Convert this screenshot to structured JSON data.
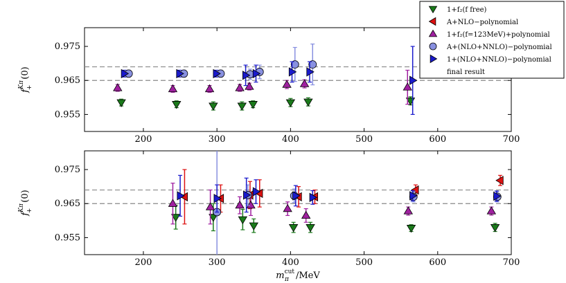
{
  "chart_data": {
    "type": "scatter",
    "title": "",
    "colors": {
      "green": "#1a7a1a",
      "red": "#dd1111",
      "magenta": "#a020a0",
      "lightblue": "#8890e0",
      "blue": "#1a1acc",
      "reference_line": "#888888"
    },
    "legend": {
      "placement": "top-right",
      "entries": [
        {
          "key": "f2_free",
          "label": "1+f₂(f free)",
          "marker": "triangle-down",
          "color": "#1a7a1a"
        },
        {
          "key": "A_nlo",
          "label": "A+NLO−polynomial",
          "marker": "triangle-left",
          "color": "#dd1111"
        },
        {
          "key": "f2_123",
          "label": "1+f₂(f=123MeV)+polynomial",
          "marker": "triangle-up",
          "color": "#a020a0"
        },
        {
          "key": "A_nlo_nnlo",
          "label": "A+(NLO+NNLO)−polynomial",
          "marker": "circle",
          "color": "#8890e0"
        },
        {
          "key": "one_nlo_nnlo",
          "label": "1+(NLO+NNLO)−polynomial",
          "marker": "triangle-right",
          "color": "#1a1acc"
        },
        {
          "key": "final",
          "label": "final result",
          "marker": "none",
          "color": "#888888"
        }
      ]
    },
    "xlabel": "m_π^cut/MeV",
    "xlim": [
      120,
      700
    ],
    "xticks": [
      200,
      300,
      400,
      500,
      600,
      700
    ],
    "panels": [
      {
        "name": "top",
        "ylabel": "f_+^{Kπ}(0)",
        "ylim": [
          0.95,
          0.9805
        ],
        "yticks": [
          0.955,
          0.965,
          0.975
        ],
        "ytick_labels": [
          "0.955",
          "0.965",
          "0.975"
        ],
        "reference_lines": [
          0.965,
          0.969
        ],
        "series": [
          {
            "key": "f2_free",
            "points": [
              {
                "x": 170,
                "y": 0.9585,
                "err": 0.001
              },
              {
                "x": 245,
                "y": 0.958,
                "err": 0.001
              },
              {
                "x": 295,
                "y": 0.9575,
                "err": 0.0012
              },
              {
                "x": 334,
                "y": 0.9575,
                "err": 0.0012
              },
              {
                "x": 349,
                "y": 0.958,
                "err": 0.001
              },
              {
                "x": 400,
                "y": 0.9585,
                "err": 0.0012
              },
              {
                "x": 424,
                "y": 0.9587,
                "err": 0.0012
              },
              {
                "x": 563,
                "y": 0.959,
                "err": 0.0012
              }
            ]
          },
          {
            "key": "f2_123",
            "points": [
              {
                "x": 165,
                "y": 0.9628,
                "err": 0.001
              },
              {
                "x": 240,
                "y": 0.9625,
                "err": 0.001
              },
              {
                "x": 290,
                "y": 0.9625,
                "err": 0.001
              },
              {
                "x": 331,
                "y": 0.9628,
                "err": 0.001
              },
              {
                "x": 344,
                "y": 0.9632,
                "err": 0.001
              },
              {
                "x": 395,
                "y": 0.9638,
                "err": 0.0012
              },
              {
                "x": 419,
                "y": 0.964,
                "err": 0.0012
              },
              {
                "x": 559,
                "y": 0.963,
                "err": 0.005
              }
            ]
          },
          {
            "key": "A_nlo_nnlo",
            "points": [
              {
                "x": 180,
                "y": 0.967,
                "err": 0.001
              },
              {
                "x": 255,
                "y": 0.967,
                "err": 0.001
              },
              {
                "x": 305,
                "y": 0.967,
                "err": 0.001
              },
              {
                "x": 345,
                "y": 0.9668,
                "err": 0.0015
              },
              {
                "x": 358,
                "y": 0.9675,
                "err": 0.002
              },
              {
                "x": 406,
                "y": 0.9697,
                "err": 0.005
              },
              {
                "x": 430,
                "y": 0.9697,
                "err": 0.006
              }
            ]
          },
          {
            "key": "one_nlo_nnlo",
            "points": [
              {
                "x": 174,
                "y": 0.967,
                "err": 0.001
              },
              {
                "x": 249,
                "y": 0.967,
                "err": 0.001
              },
              {
                "x": 299,
                "y": 0.967,
                "err": 0.001
              },
              {
                "x": 339,
                "y": 0.9665,
                "err": 0.003
              },
              {
                "x": 353,
                "y": 0.967,
                "err": 0.0025
              },
              {
                "x": 402,
                "y": 0.9675,
                "err": 0.003
              },
              {
                "x": 426,
                "y": 0.9675,
                "err": 0.003
              },
              {
                "x": 566,
                "y": 0.965,
                "err": 0.01
              }
            ]
          }
        ]
      },
      {
        "name": "bottom",
        "ylabel": "f_+^{Kπ}(0)",
        "ylim": [
          0.95,
          0.9805
        ],
        "yticks": [
          0.955,
          0.965,
          0.975
        ],
        "ytick_labels": [
          "0.955",
          "0.965",
          "0.975"
        ],
        "reference_lines": [
          0.965,
          0.969
        ],
        "series": [
          {
            "key": "f2_free",
            "points": [
              {
                "x": 244,
                "y": 0.961,
                "err": 0.0035
              },
              {
                "x": 295,
                "y": 0.961,
                "err": 0.004
              },
              {
                "x": 335,
                "y": 0.9603,
                "err": 0.003
              },
              {
                "x": 350,
                "y": 0.9585,
                "err": 0.002
              },
              {
                "x": 404,
                "y": 0.958,
                "err": 0.0015
              },
              {
                "x": 427,
                "y": 0.958,
                "err": 0.0015
              },
              {
                "x": 564,
                "y": 0.9578,
                "err": 0.001
              },
              {
                "x": 678,
                "y": 0.958,
                "err": 0.0012
              }
            ]
          },
          {
            "key": "A_nlo",
            "points": [
              {
                "x": 256,
                "y": 0.967,
                "err": 0.008
              },
              {
                "x": 305,
                "y": 0.9665,
                "err": 0.004
              },
              {
                "x": 345,
                "y": 0.9675,
                "err": 0.004
              },
              {
                "x": 358,
                "y": 0.968,
                "err": 0.004
              },
              {
                "x": 411,
                "y": 0.967,
                "err": 0.003
              },
              {
                "x": 433,
                "y": 0.967,
                "err": 0.002
              },
              {
                "x": 570,
                "y": 0.969,
                "err": 0.0015
              },
              {
                "x": 685,
                "y": 0.9718,
                "err": 0.0015
              }
            ]
          },
          {
            "key": "f2_123",
            "points": [
              {
                "x": 240,
                "y": 0.965,
                "err": 0.006
              },
              {
                "x": 291,
                "y": 0.964,
                "err": 0.005
              },
              {
                "x": 331,
                "y": 0.9645,
                "err": 0.0025
              },
              {
                "x": 346,
                "y": 0.9645,
                "err": 0.003
              },
              {
                "x": 396,
                "y": 0.9635,
                "err": 0.002
              },
              {
                "x": 421,
                "y": 0.9615,
                "err": 0.002
              },
              {
                "x": 560,
                "y": 0.9628,
                "err": 0.0012
              },
              {
                "x": 673,
                "y": 0.9628,
                "err": 0.0012
              }
            ]
          },
          {
            "key": "A_nlo_nnlo",
            "points": [
              {
                "x": 300,
                "y": 0.9625,
                "err": 0.02
              },
              {
                "x": 342,
                "y": 0.9675,
                "err": 0.003
              },
              {
                "x": 405,
                "y": 0.9673,
                "err": 0.002
              },
              {
                "x": 567,
                "y": 0.967,
                "err": 0.0015
              },
              {
                "x": 681,
                "y": 0.967,
                "err": 0.0015
              }
            ]
          },
          {
            "key": "one_nlo_nnlo",
            "points": [
              {
                "x": 250,
                "y": 0.9673,
                "err": 0.006
              },
              {
                "x": 300,
                "y": 0.9665,
                "err": 0.004
              },
              {
                "x": 340,
                "y": 0.9675,
                "err": 0.005
              },
              {
                "x": 353,
                "y": 0.9685,
                "err": 0.0035
              },
              {
                "x": 407,
                "y": 0.9673,
                "err": 0.003
              },
              {
                "x": 430,
                "y": 0.9668,
                "err": 0.002
              },
              {
                "x": 566,
                "y": 0.9673,
                "err": 0.0015
              },
              {
                "x": 680,
                "y": 0.9672,
                "err": 0.0015
              }
            ]
          }
        ]
      }
    ]
  }
}
